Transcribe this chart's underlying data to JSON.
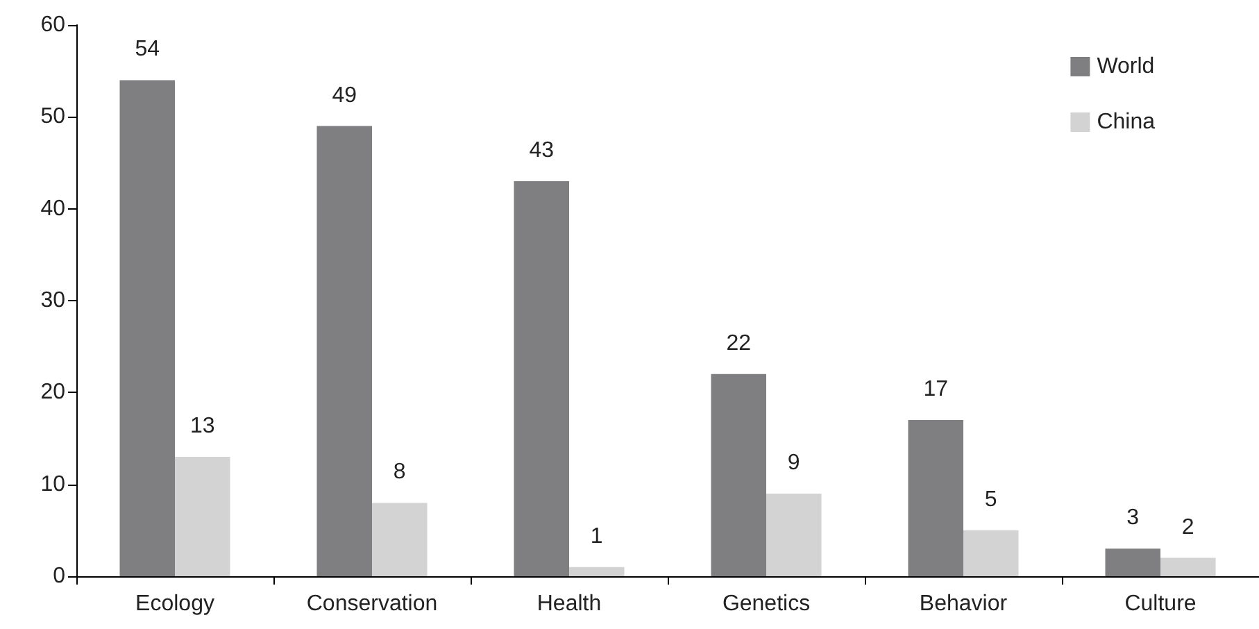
{
  "chart_data": {
    "type": "bar",
    "categories": [
      "Ecology",
      "Conservation",
      "Health",
      "Genetics",
      "Behavior",
      "Culture"
    ],
    "series": [
      {
        "name": "World",
        "color": "#7f7f81",
        "values": [
          54,
          49,
          43,
          22,
          17,
          3
        ]
      },
      {
        "name": "China",
        "color": "#d3d3d3",
        "values": [
          13,
          8,
          1,
          9,
          5,
          2
        ]
      }
    ],
    "ylim": [
      0,
      60
    ],
    "yticks": [
      0,
      10,
      20,
      30,
      40,
      50,
      60
    ],
    "grid": false,
    "legend": "top right",
    "data_labels": true
  }
}
